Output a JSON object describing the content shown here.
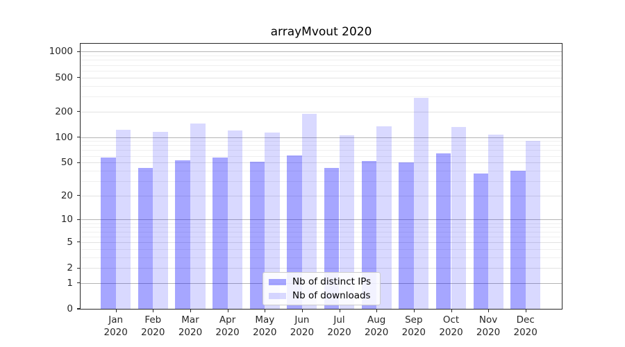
{
  "chart_data": {
    "type": "bar",
    "title": "arrayMvout 2020",
    "xlabel": "",
    "ylabel": "",
    "categories": [
      "Jan",
      "Feb",
      "Mar",
      "Apr",
      "May",
      "Jun",
      "Jul",
      "Aug",
      "Sep",
      "Oct",
      "Nov",
      "Dec"
    ],
    "x_tick_second_line": "2020",
    "series": [
      {
        "name": "Nb of distinct IPs",
        "color": "rgba(0,0,255,0.35)",
        "color_over_white": "#a6a6ff",
        "values": [
          57,
          43,
          53,
          57,
          51,
          61,
          43,
          52,
          50,
          64,
          37,
          40
        ]
      },
      {
        "name": "Nb of downloads",
        "color": "rgba(0,0,255,0.15)",
        "color_over_white": "#d9d9ff",
        "values": [
          122,
          116,
          143,
          119,
          114,
          187,
          104,
          134,
          287,
          132,
          106,
          90
        ]
      }
    ],
    "y_axis": {
      "scale": "log1p",
      "ticks": [
        1000,
        500,
        200,
        100,
        50,
        20,
        10,
        5,
        2,
        1,
        0
      ],
      "ylim": [
        0,
        1240
      ],
      "gridlines": {
        "major": [
          1,
          10,
          100,
          1000
        ],
        "mid": [
          2,
          5,
          20,
          50,
          200,
          500
        ],
        "minor": [
          3,
          4,
          6,
          7,
          8,
          9,
          30,
          40,
          60,
          70,
          80,
          90,
          300,
          400,
          600,
          700,
          800,
          900
        ]
      }
    },
    "grid": true,
    "legend": {
      "position": "lower-center"
    }
  }
}
